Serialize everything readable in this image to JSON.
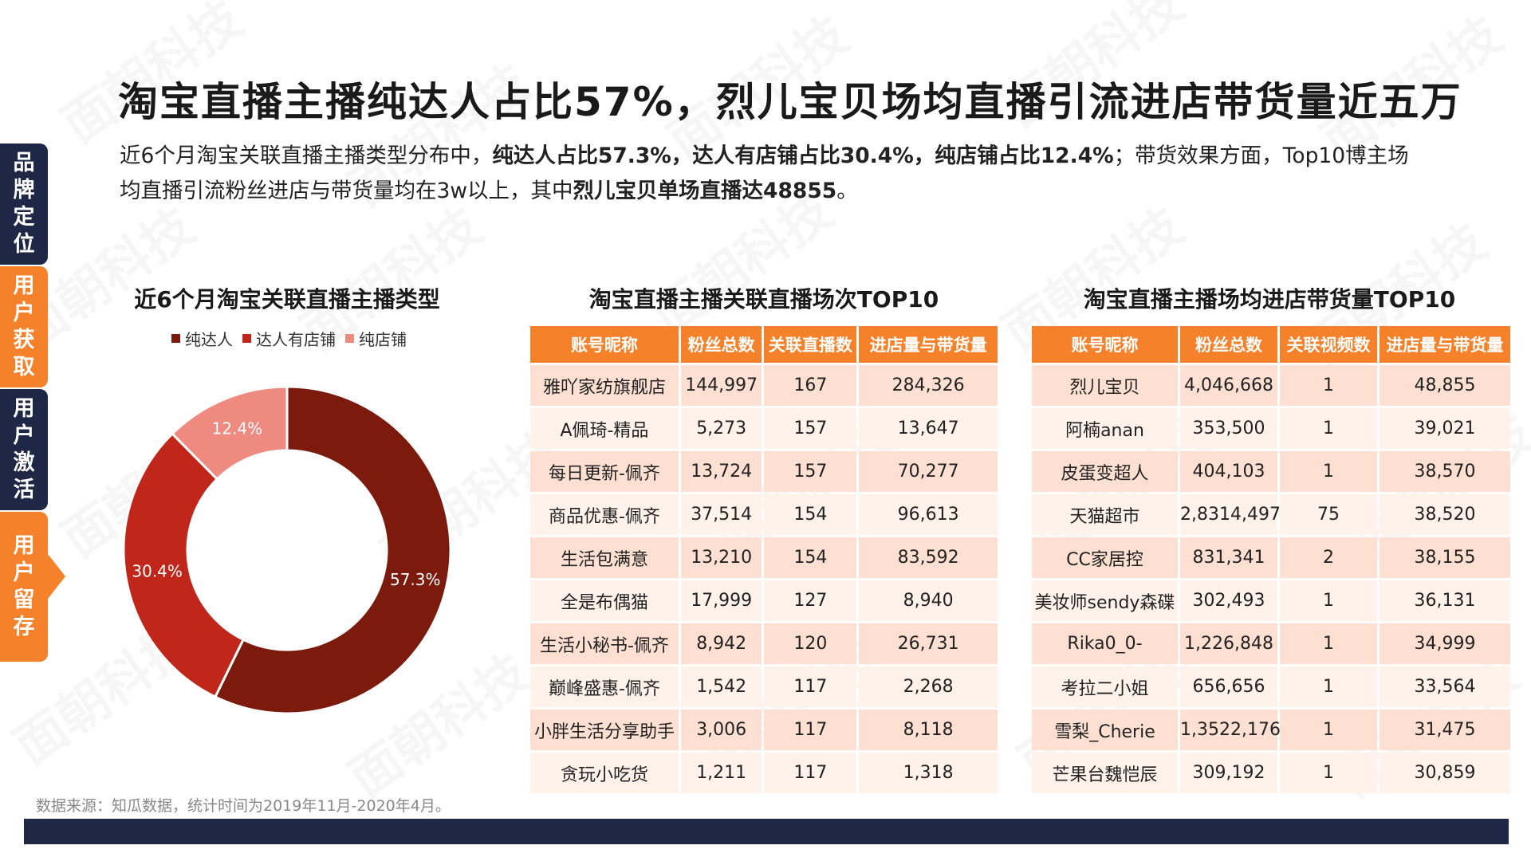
{
  "title": "淘宝直播主播纯达人占比57%，烈儿宝贝场均直播引流进店带货量近五万",
  "summary": {
    "t1": "近6个月淘宝关联直播主播类型分布中，",
    "b1": "纯达人占比57.3%，达人有店铺占比30.4%，纯店铺占比12.4%",
    "t2": "；带货效果方面，Top10博主场均直播引流粉丝进店与带货量均在3w以上，其中",
    "b2": "烈儿宝贝单场直播达48855",
    "t3": "。"
  },
  "nav": [
    {
      "label": "品牌定位",
      "chars": [
        "品",
        "牌",
        "定",
        "位"
      ],
      "color": "#1f2747"
    },
    {
      "label": "用户获取",
      "chars": [
        "用",
        "户",
        "获",
        "取"
      ],
      "color": "#f5822a"
    },
    {
      "label": "用户激活",
      "chars": [
        "用",
        "户",
        "激",
        "活"
      ],
      "color": "#1f2747"
    },
    {
      "label": "用户留存",
      "chars": [
        "用",
        "户",
        "留",
        "存"
      ],
      "color": "#f5822a"
    }
  ],
  "watermark": "面朝科技",
  "chart_data": {
    "type": "pie",
    "donut": true,
    "title": "近6个月淘宝关联直播主播类型",
    "legend_position": "top",
    "slices": [
      {
        "label": "纯达人",
        "value": 57.3,
        "display": "57.3%",
        "color": "#7d1a0e"
      },
      {
        "label": "达人有店铺",
        "value": 30.4,
        "display": "30.4%",
        "color": "#c0271a"
      },
      {
        "label": "纯店铺",
        "value": 12.4,
        "display": "12.4%",
        "color": "#ef8a80"
      }
    ]
  },
  "table1": {
    "title": "淘宝直播主播关联直播场次TOP10",
    "headers": [
      "账号昵称",
      "粉丝总数",
      "关联直播数",
      "进店量与带货量"
    ],
    "rows": [
      [
        "雅吖家纺旗舰店",
        "144,997",
        "167",
        "284,326"
      ],
      [
        "A佩琦-精品",
        "5,273",
        "157",
        "13,647"
      ],
      [
        "每日更新-佩齐",
        "13,724",
        "157",
        "70,277"
      ],
      [
        "商品优惠-佩齐",
        "37,514",
        "154",
        "96,613"
      ],
      [
        "生活包满意",
        "13,210",
        "154",
        "83,592"
      ],
      [
        "全是布偶猫",
        "17,999",
        "127",
        "8,940"
      ],
      [
        "生活小秘书-佩齐",
        "8,942",
        "120",
        "26,731"
      ],
      [
        "巅峰盛惠-佩齐",
        "1,542",
        "117",
        "2,268"
      ],
      [
        "小胖生活分享助手",
        "3,006",
        "117",
        "8,118"
      ],
      [
        "贪玩小吃货",
        "1,211",
        "117",
        "1,318"
      ]
    ]
  },
  "table2": {
    "title": "淘宝直播主播场均进店带货量TOP10",
    "headers": [
      "账号昵称",
      "粉丝总数",
      "关联视频数",
      "进店量与带货量"
    ],
    "rows": [
      [
        "烈儿宝贝",
        "4,046,668",
        "1",
        "48,855"
      ],
      [
        "阿楠anan",
        "353,500",
        "1",
        "39,021"
      ],
      [
        "皮蛋变超人",
        "404,103",
        "1",
        "38,570"
      ],
      [
        "天猫超市",
        "2,8314,497",
        "75",
        "38,520"
      ],
      [
        "CC家居控",
        "831,341",
        "2",
        "38,155"
      ],
      [
        "美妆师sendy森碟",
        "302,493",
        "1",
        "36,131"
      ],
      [
        "Rika0_0-",
        "1,226,848",
        "1",
        "34,999"
      ],
      [
        "考拉二小姐",
        "656,656",
        "1",
        "33,564"
      ],
      [
        "雪梨_Cherie",
        "1,3522,176",
        "1",
        "31,475"
      ],
      [
        "芒果台魏恺辰",
        "309,192",
        "1",
        "30,859"
      ]
    ]
  },
  "source": "数据来源：知瓜数据，统计时间为2019年11月-2020年4月。"
}
